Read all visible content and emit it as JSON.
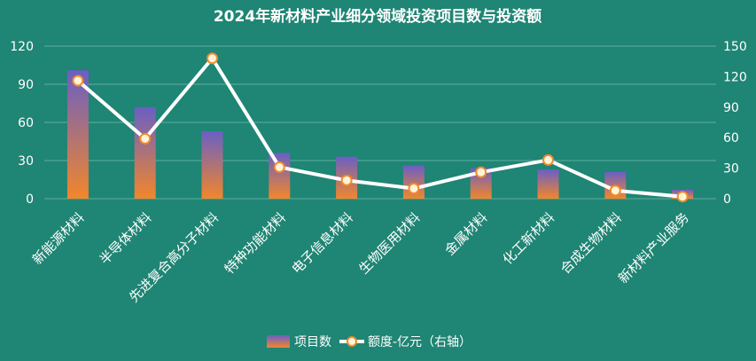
{
  "colors": {
    "background": "#1f8574",
    "bar_top": "#6a5fc4",
    "bar_bottom": "#f2862b",
    "line": "#ffffff",
    "marker_fill": "#fff3da",
    "marker_stroke": "#f08b2c",
    "grid": "#5fae9f"
  },
  "chart_data": {
    "type": "bar",
    "title": "2024年新材料产业细分领域投资项目数与投资额",
    "categories": [
      "新能源材料",
      "半导体材料",
      "先进复合高分子材料",
      "特种功能材料",
      "电子信息材料",
      "生物医用材料",
      "金属材料",
      "化工新材料",
      "合成生物材料",
      "新材料产业服务"
    ],
    "series": [
      {
        "name": "项目数",
        "type": "bar",
        "axis": "left",
        "values": [
          101,
          72,
          53,
          36,
          33,
          26,
          24,
          23,
          21,
          7
        ]
      },
      {
        "name": "额度-亿元（右轴）",
        "type": "line",
        "axis": "right",
        "values": [
          116,
          59,
          138,
          31,
          18,
          10,
          26,
          38,
          8,
          2
        ]
      }
    ],
    "left_axis": {
      "ticks": [
        "0",
        "30",
        "60",
        "90",
        "120"
      ],
      "range": [
        0,
        120
      ]
    },
    "right_axis": {
      "ticks": [
        "0",
        "30",
        "60",
        "90",
        "120",
        "150"
      ],
      "range": [
        0,
        150
      ]
    },
    "grid": true,
    "legend_position": "bottom"
  }
}
